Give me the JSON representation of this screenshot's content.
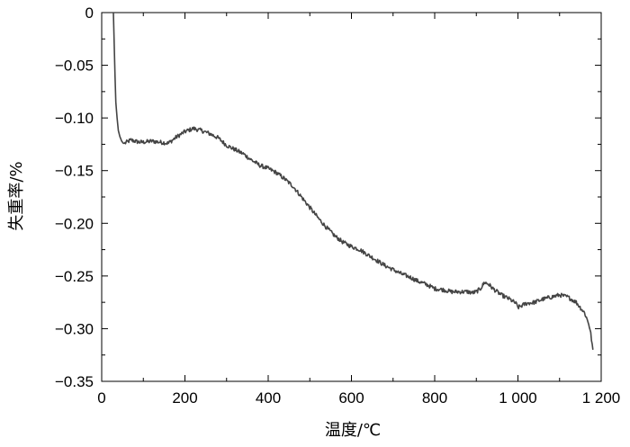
{
  "chart_data": {
    "type": "line",
    "xlabel": "温度/℃",
    "ylabel": "失重率/%",
    "xlim": [
      0,
      1200
    ],
    "ylim": [
      -0.35,
      0
    ],
    "xticks": [
      0,
      200,
      400,
      600,
      800,
      1000,
      1200
    ],
    "xtick_labels": [
      "0",
      "200",
      "400",
      "600",
      "800",
      "1 000",
      "1 200"
    ],
    "yticks": [
      0,
      -0.05,
      -0.1,
      -0.15,
      -0.2,
      -0.25,
      -0.3,
      -0.35
    ],
    "ytick_labels": [
      "0",
      "−0.05",
      "−0.10",
      "−0.15",
      "−0.20",
      "−0.25",
      "−0.30",
      "−0.35"
    ],
    "grid": false,
    "line_color": "#444444",
    "series": [
      {
        "x": [
          28,
          30,
          32,
          34,
          37,
          40,
          44,
          48,
          52,
          56,
          60,
          65,
          70,
          80,
          90,
          100,
          120,
          140,
          160,
          180,
          200,
          220,
          240,
          260,
          280,
          300,
          320,
          340,
          360,
          380,
          400,
          420,
          440,
          460,
          480,
          500,
          520,
          540,
          560,
          580,
          600,
          620,
          640,
          660,
          680,
          700,
          720,
          740,
          760,
          780,
          800,
          820,
          840,
          860,
          880,
          890,
          900,
          910,
          920,
          930,
          940,
          960,
          980,
          995,
          1000,
          1020,
          1040,
          1060,
          1080,
          1100,
          1120,
          1140,
          1160,
          1170,
          1175,
          1180
        ],
        "y": [
          0,
          -0.03,
          -0.06,
          -0.085,
          -0.1,
          -0.112,
          -0.118,
          -0.122,
          -0.124,
          -0.124,
          -0.123,
          -0.122,
          -0.121,
          -0.122,
          -0.123,
          -0.123,
          -0.122,
          -0.123,
          -0.124,
          -0.118,
          -0.113,
          -0.11,
          -0.112,
          -0.115,
          -0.119,
          -0.126,
          -0.13,
          -0.134,
          -0.14,
          -0.145,
          -0.148,
          -0.152,
          -0.158,
          -0.165,
          -0.175,
          -0.185,
          -0.195,
          -0.204,
          -0.212,
          -0.218,
          -0.222,
          -0.225,
          -0.23,
          -0.235,
          -0.24,
          -0.244,
          -0.248,
          -0.251,
          -0.255,
          -0.258,
          -0.262,
          -0.263,
          -0.265,
          -0.265,
          -0.265,
          -0.266,
          -0.265,
          -0.262,
          -0.256,
          -0.258,
          -0.262,
          -0.268,
          -0.272,
          -0.276,
          -0.28,
          -0.276,
          -0.275,
          -0.272,
          -0.27,
          -0.268,
          -0.27,
          -0.275,
          -0.285,
          -0.295,
          -0.305,
          -0.32
        ]
      }
    ]
  }
}
